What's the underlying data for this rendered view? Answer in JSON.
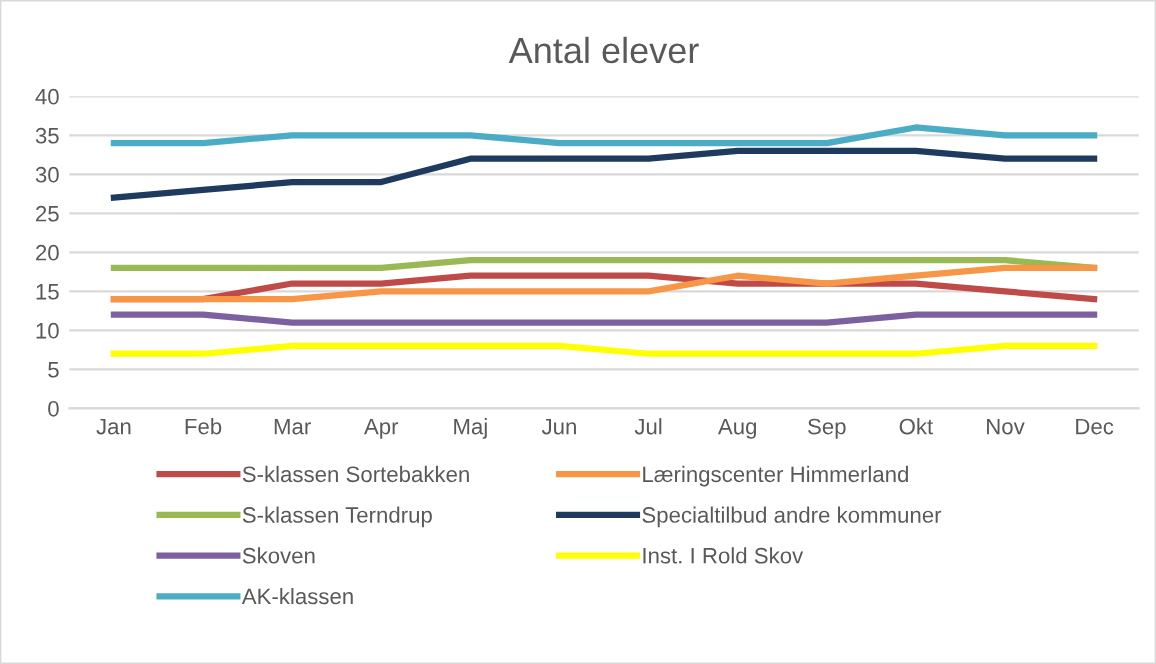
{
  "chart_data": {
    "type": "line",
    "title": "Antal elever",
    "categories": [
      "Jan",
      "Feb",
      "Mar",
      "Apr",
      "Maj",
      "Jun",
      "Jul",
      "Aug",
      "Sep",
      "Okt",
      "Nov",
      "Dec"
    ],
    "series": [
      {
        "name": "S-klassen Sortebakken",
        "color": "#be4b48",
        "values": [
          14,
          14,
          16,
          16,
          17,
          17,
          17,
          16,
          16,
          16,
          15,
          14
        ]
      },
      {
        "name": "S-klassen Terndrup",
        "color": "#98b954",
        "values": [
          18,
          18,
          18,
          18,
          19,
          19,
          19,
          19,
          19,
          19,
          19,
          18
        ]
      },
      {
        "name": "Skoven",
        "color": "#7d60a0",
        "values": [
          12,
          12,
          11,
          11,
          11,
          11,
          11,
          11,
          11,
          12,
          12,
          12
        ]
      },
      {
        "name": "AK-klassen",
        "color": "#4bacc6",
        "values": [
          34,
          34,
          35,
          35,
          35,
          34,
          34,
          34,
          34,
          36,
          35,
          35
        ]
      },
      {
        "name": "Læringscenter Himmerland",
        "color": "#f79646",
        "values": [
          14,
          14,
          14,
          15,
          15,
          15,
          15,
          17,
          16,
          17,
          18,
          18
        ]
      },
      {
        "name": "Specialtilbud andre kommuner",
        "color": "#1f3a5f",
        "values": [
          27,
          28,
          29,
          29,
          32,
          32,
          32,
          33,
          33,
          33,
          32,
          32
        ]
      },
      {
        "name": "Inst. I Rold Skov",
        "color": "#ffff00",
        "values": [
          7,
          7,
          8,
          8,
          8,
          8,
          7,
          7,
          7,
          7,
          8,
          8
        ]
      }
    ],
    "ylim": [
      0,
      40
    ],
    "yticks": [
      0,
      5,
      10,
      15,
      20,
      25,
      30,
      35,
      40
    ],
    "grid": "y",
    "legend": "bottom",
    "marker": "none",
    "line_style": "solid"
  }
}
